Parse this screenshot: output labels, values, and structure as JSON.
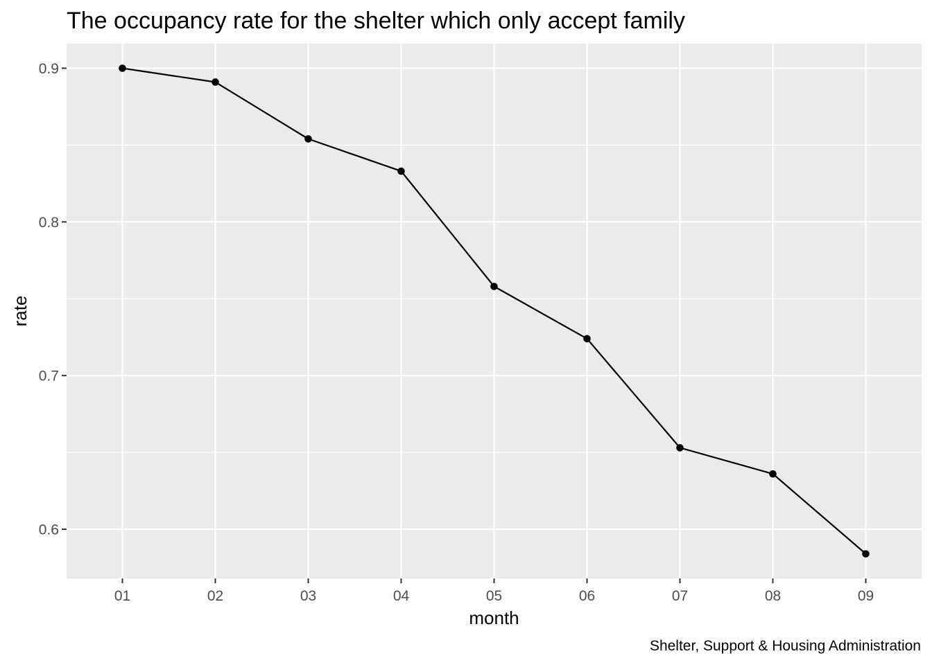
{
  "chart_data": {
    "type": "line",
    "title": "The occupancy rate for the shelter which only accept family",
    "xlabel": "month",
    "ylabel": "rate",
    "caption": "Shelter, Support & Housing Administration",
    "categories": [
      "01",
      "02",
      "03",
      "04",
      "05",
      "06",
      "07",
      "08",
      "09"
    ],
    "series": [
      {
        "values": [
          0.9,
          0.891,
          0.854,
          0.833,
          0.758,
          0.724,
          0.653,
          0.636,
          0.584
        ]
      }
    ],
    "ylim": [
      0.568,
      0.916
    ],
    "yticks": [
      0.6,
      0.7,
      0.8,
      0.9
    ],
    "ytick_labels": [
      "0.6",
      "0.7",
      "0.8",
      "0.9"
    ],
    "grid": true,
    "panel_color": "#ebebeb",
    "line_color": "#000000",
    "point_color": "#000000"
  }
}
